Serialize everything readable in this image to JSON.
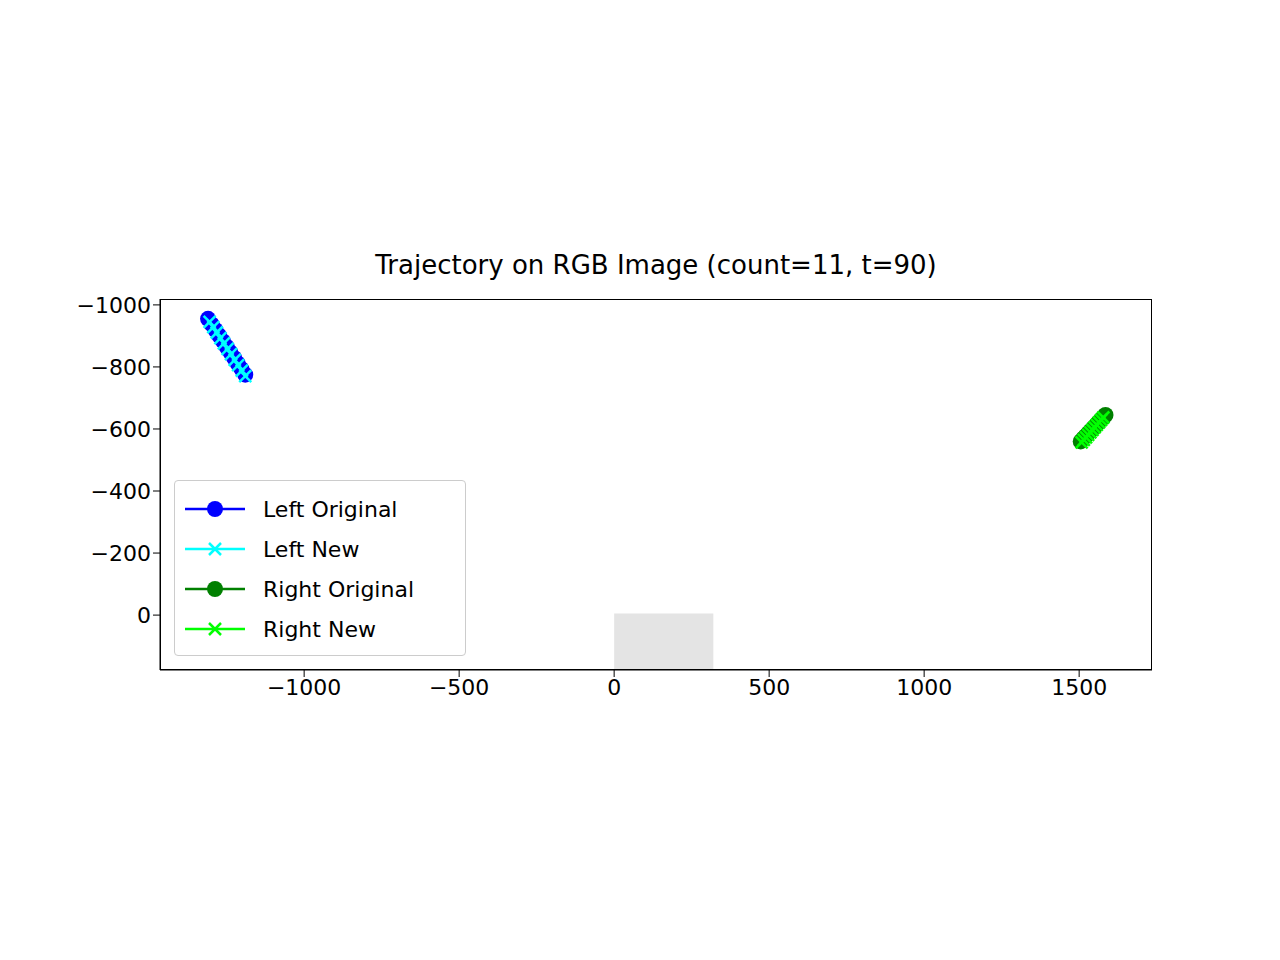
{
  "chart_data": {
    "type": "line",
    "title": "Trajectory on RGB Image (count=11, t=90)",
    "xlim": [
      -1465,
      1735
    ],
    "ylim": [
      177,
      -1019
    ],
    "xticks": [
      {
        "value": -1000,
        "label": "−1000"
      },
      {
        "value": -500,
        "label": "−500"
      },
      0,
      500,
      1000,
      1500
    ],
    "yticks": [
      {
        "value": -1000,
        "label": "−1000"
      },
      {
        "value": -800,
        "label": "−800"
      },
      {
        "value": -600,
        "label": "−600"
      },
      {
        "value": -400,
        "label": "−400"
      },
      {
        "value": -200,
        "label": "−200"
      },
      0
    ],
    "grid": false,
    "legend": "lower left",
    "image": {
      "xlim": [
        0,
        320
      ],
      "ylim": [
        177,
        -5
      ]
    },
    "series": [
      {
        "name": "Left Original",
        "color": "#0000ff",
        "marker": "o",
        "line_style": "solid",
        "x": [
          -1310,
          -1298,
          -1286,
          -1274,
          -1262,
          -1250,
          -1238,
          -1226,
          -1214,
          -1202,
          -1190
        ],
        "y": [
          -955,
          -937,
          -919,
          -901,
          -883,
          -865,
          -847,
          -829,
          -811,
          -793,
          -775
        ]
      },
      {
        "name": "Left New",
        "color": "#00ffff",
        "marker": "x",
        "line_style": "solid",
        "x": [
          -1305,
          -1293,
          -1282,
          -1270,
          -1259,
          -1247,
          -1236,
          -1224,
          -1213,
          -1201,
          -1190
        ],
        "y": [
          -945,
          -928,
          -911,
          -893,
          -876,
          -858,
          -841,
          -823,
          -806,
          -788,
          -770
        ]
      },
      {
        "name": "Right Original",
        "color": "#008000",
        "marker": "o",
        "line_style": "solid",
        "x": [
          1505,
          1513,
          1521,
          1529,
          1537,
          1545,
          1553,
          1561,
          1569,
          1577,
          1585
        ],
        "y": [
          -560,
          -569,
          -577,
          -586,
          -594,
          -603,
          -611,
          -620,
          -628,
          -637,
          -645
        ]
      },
      {
        "name": "Right New",
        "color": "#00ff00",
        "marker": "x",
        "line_style": "solid",
        "x": [
          1508,
          1515,
          1522,
          1529,
          1536,
          1543,
          1550,
          1557,
          1564,
          1571,
          1578
        ],
        "y": [
          -557,
          -565,
          -573,
          -581,
          -589,
          -597,
          -605,
          -613,
          -621,
          -629,
          -637
        ]
      }
    ]
  }
}
